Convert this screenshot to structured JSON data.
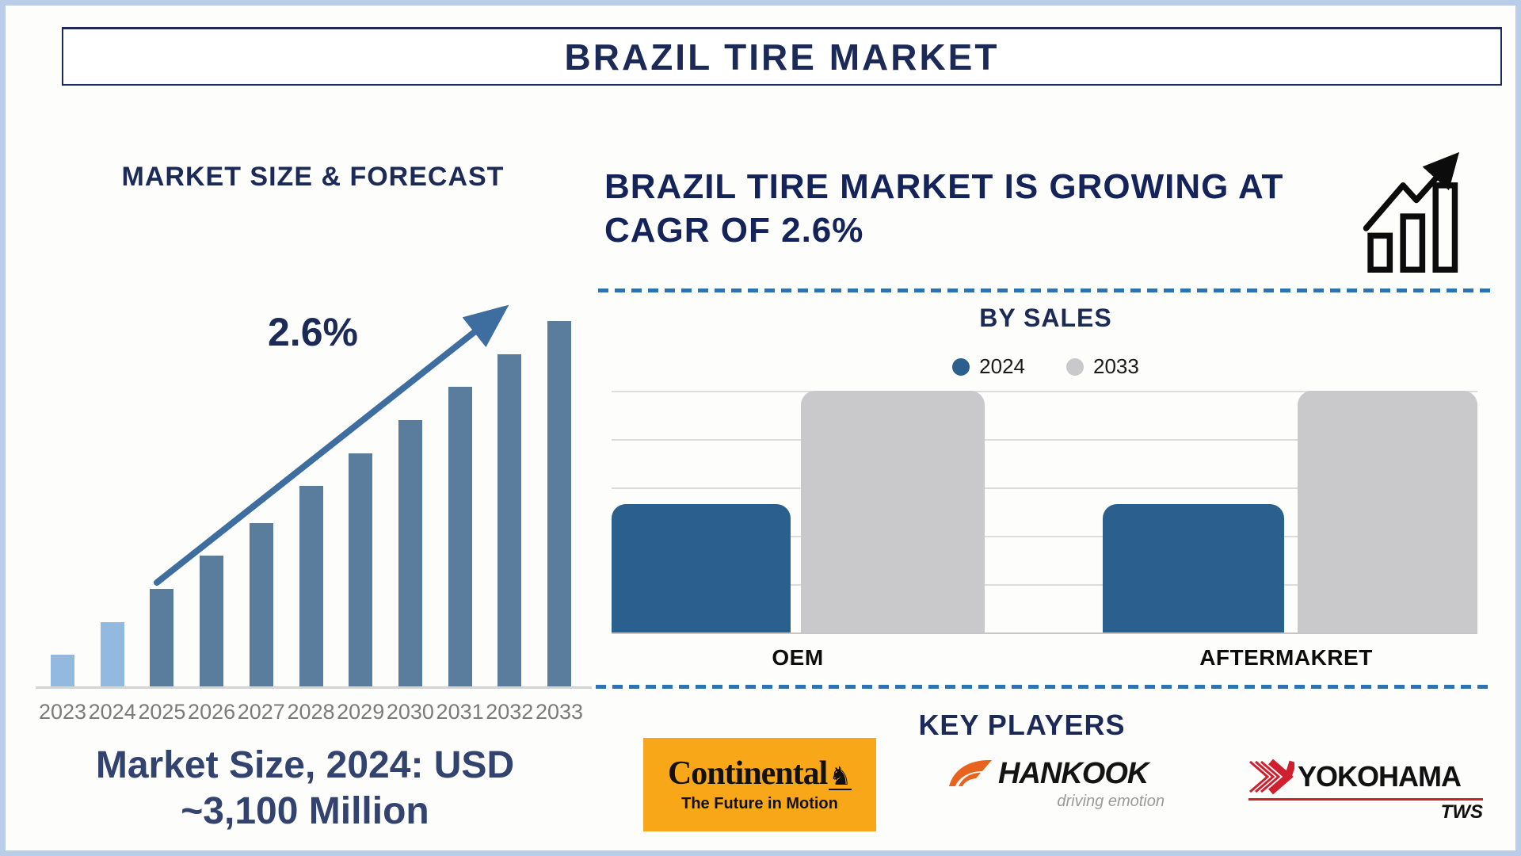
{
  "frame": {
    "border_color": "#b9cde9",
    "background": "#fdfdfb"
  },
  "header": {
    "title": "BRAZIL TIRE MARKET",
    "text_color": "#1b2a56"
  },
  "forecast_section": {
    "heading": "MARKET SIZE & FORECAST",
    "growth_label": "2.6%",
    "caption_line1": "Market Size, 2024: USD",
    "caption_line2": "~3,100 Million",
    "arrow_color": "#3e6da0",
    "bar_color_recent_years": "#92b9e0",
    "bar_color_forecast_years": "#5a7c9d"
  },
  "insight_section": {
    "heading_line1": "BRAZIL TIRE MARKET IS GROWING AT",
    "heading_line2": "CAGR OF 2.6%",
    "icon": "growth-bar-chart-with-rising-arrow"
  },
  "by_sales_section": {
    "title": "BY SALES",
    "legend": [
      {
        "label": "2024",
        "color": "#2a5f8e"
      },
      {
        "label": "2033",
        "color": "#c9c9cb"
      }
    ]
  },
  "key_players_section": {
    "title": "KEY PLAYERS",
    "players": [
      {
        "name": "Continental",
        "tagline": "The Future in Motion",
        "brand_bg": "#f8a718",
        "logo_icon": "rearing-horse"
      },
      {
        "name": "Hankook",
        "tagline": "driving emotion",
        "brand_color": "#e8641e",
        "logo_icon": "orange-wing"
      },
      {
        "name": "YOKOHAMA",
        "tagline": "TWS",
        "brand_color": "#d02030",
        "logo_icon": "red-chevron-stripes"
      }
    ]
  },
  "separators": {
    "style": "dashed",
    "color": "#2e73b0"
  },
  "chart_data": [
    {
      "type": "bar",
      "title": "MARKET SIZE & FORECAST",
      "categories": [
        "2023",
        "2024",
        "2025",
        "2026",
        "2027",
        "2028",
        "2029",
        "2030",
        "2031",
        "2032",
        "2033"
      ],
      "values_relative": [
        9,
        18,
        27,
        36,
        45,
        55,
        64,
        73,
        82,
        91,
        100
      ],
      "unit": "relative height, no y-axis shown (stylized growth)",
      "known_value": "2024 market size = USD ~3,100 Million",
      "annotations": [
        "2.6% CAGR arrow rising left-to-right"
      ],
      "highlight": "2023 and 2024 bars light blue; 2025-2033 bars steel blue",
      "xlabel": "",
      "ylabel": "",
      "grid": "off",
      "legend_position": "none"
    },
    {
      "type": "bar",
      "title": "BY SALES",
      "categories": [
        "OEM",
        "AFTERMAKRET"
      ],
      "series": [
        {
          "name": "2024",
          "values": [
            53,
            53
          ]
        },
        {
          "name": "2033",
          "values": [
            100,
            100
          ]
        }
      ],
      "unit": "relative height, no y-axis labels shown",
      "xlabel": "",
      "ylabel": "",
      "grid": "horizontal",
      "legend_position": "top"
    }
  ]
}
